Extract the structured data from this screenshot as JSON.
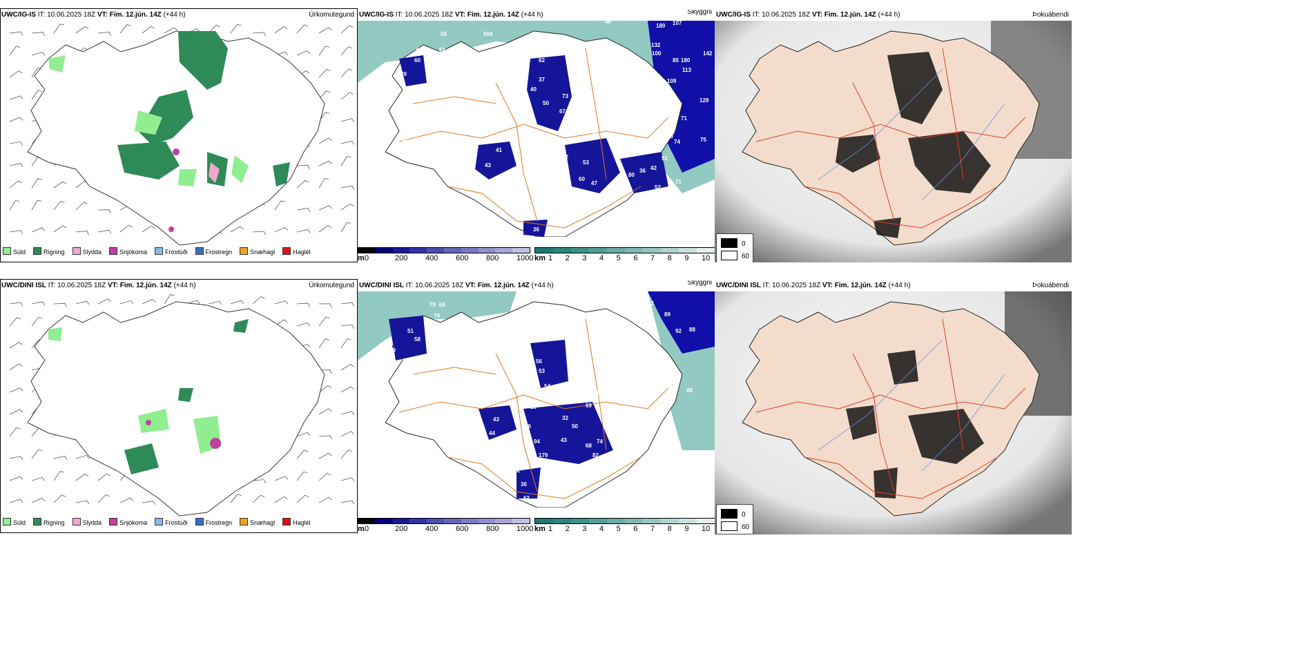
{
  "rows": [
    {
      "model": "UWC/IG-IS",
      "it_label": "IT:",
      "it_value": "10.06.2025 18Z",
      "vt_label": "VT:",
      "vt_value": "Fim. 12.jún. 14Z",
      "lead": "(+44 h)",
      "cloud_labels": [
        "55",
        "504",
        "46",
        "52",
        "60",
        "49",
        "62",
        "37",
        "40",
        "50",
        "73",
        "67",
        "10",
        "90",
        "81",
        "61",
        "52",
        "53",
        "60",
        "47",
        "89",
        "80",
        "36",
        "51",
        "42",
        "71",
        "18",
        "41",
        "43",
        "49",
        "36",
        "46",
        "180",
        "107",
        "132",
        "100",
        "142",
        "85",
        "113",
        "109",
        "129",
        "71",
        "82",
        "74",
        "75",
        "180",
        "59",
        "52"
      ]
    },
    {
      "model": "UWC/DINI ISL",
      "it_label": "IT:",
      "it_value": "10.06.2025 18Z",
      "vt_label": "VT:",
      "vt_value": "Fim. 12.jún. 14Z",
      "lead": "(+44 h)",
      "cloud_labels": [
        "70",
        "68",
        "79",
        "51",
        "58",
        "39",
        "56",
        "53",
        "54",
        "29",
        "36",
        "43",
        "44",
        "95",
        "94",
        "32",
        "50",
        "43",
        "68",
        "74",
        "82",
        "69",
        "68",
        "179",
        "72",
        "36",
        "62",
        "42",
        "87",
        "89",
        "92",
        "88",
        "88",
        "101"
      ]
    }
  ],
  "titles": {
    "precip": "Úrkomutegund",
    "cloud": "Skyggni",
    "fog": "Þokuábendi"
  },
  "precip_legend": [
    {
      "label": "Súld",
      "color": "#90ee90"
    },
    {
      "label": "Rigning",
      "color": "#2e8b57"
    },
    {
      "label": "Slydda",
      "color": "#f4a6d0"
    },
    {
      "label": "Snjókoma",
      "color": "#c040a0"
    },
    {
      "label": "Frostúði",
      "color": "#87b8ee"
    },
    {
      "label": "Frostregn",
      "color": "#3a6fc0"
    },
    {
      "label": "Snæhagl",
      "color": "#f0a020"
    },
    {
      "label": "Haglél",
      "color": "#e01010"
    }
  ],
  "ceiling_bar": {
    "unit": "m",
    "ticks": [
      "0",
      "200",
      "400",
      "600",
      "800",
      "1000"
    ],
    "colors": [
      "#000000",
      "#00007a",
      "#1a1a96",
      "#3333a6",
      "#4d4dae",
      "#6666b8",
      "#7b7bc2",
      "#9090cc",
      "#a6a6d6",
      "#c0c0e2"
    ]
  },
  "vis_bar": {
    "unit": "km",
    "ticks": [
      "1",
      "2",
      "3",
      "4",
      "5",
      "6",
      "7",
      "8",
      "9",
      "10"
    ],
    "colors": [
      "#1f7a73",
      "#2d857e",
      "#3e918a",
      "#559e97",
      "#6aaba5",
      "#80b8b2",
      "#97c5c0",
      "#b1d3cf",
      "#cbe2df",
      "#e6f1ef"
    ]
  },
  "fog_legend": {
    "values": [
      "0",
      "60"
    ],
    "colors": [
      "#000000",
      "#ffffff"
    ]
  }
}
